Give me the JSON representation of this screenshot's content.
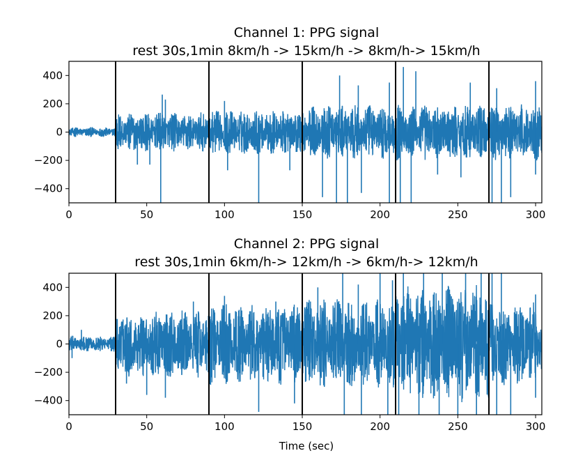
{
  "chart_data": [
    {
      "type": "line",
      "title": "Channel 1: PPG signal",
      "subtitle": "rest 30s,1min 8km/h -> 15km/h -> 8km/h-> 15km/h",
      "xlabel": "",
      "ylabel": "",
      "xlim": [
        0,
        304
      ],
      "ylim": [
        -500,
        500
      ],
      "xticks": [
        0,
        50,
        100,
        150,
        200,
        250,
        300
      ],
      "yticks": [
        -400,
        -200,
        0,
        200,
        400
      ],
      "vlines": [
        30,
        90,
        150,
        210,
        270
      ],
      "series_color": "#1f77b4",
      "vline_color": "#000000",
      "segments": [
        {
          "x0": 0,
          "x1": 30,
          "amp": 35,
          "spikes_up": [],
          "spikes_down": []
        },
        {
          "x0": 30,
          "x1": 90,
          "amp": 140,
          "spikes_up": [
            [
              60,
              265
            ],
            [
              62,
              230
            ]
          ],
          "spikes_down": [
            [
              44,
              -230
            ],
            [
              52,
              -230
            ],
            [
              59,
              -500
            ]
          ]
        },
        {
          "x0": 90,
          "x1": 150,
          "amp": 160,
          "spikes_up": [
            [
              100,
              220
            ]
          ],
          "spikes_down": [
            [
              102,
              -270
            ],
            [
              122,
              -500
            ],
            [
              142,
              -270
            ]
          ]
        },
        {
          "x0": 150,
          "x1": 210,
          "amp": 190,
          "spikes_up": [
            [
              174,
              400
            ],
            [
              186,
              330
            ],
            [
              206,
              350
            ]
          ],
          "spikes_down": [
            [
              163,
              -460
            ],
            [
              172,
              -500
            ],
            [
              179,
              -500
            ],
            [
              188,
              -430
            ],
            [
              206,
              -500
            ]
          ]
        },
        {
          "x0": 210,
          "x1": 270,
          "amp": 200,
          "spikes_up": [
            [
              215,
              460
            ],
            [
              223,
              430
            ],
            [
              258,
              350
            ]
          ],
          "spikes_down": [
            [
              213,
              -500
            ],
            [
              220,
              -500
            ],
            [
              237,
              -300
            ],
            [
              252,
              -320
            ]
          ]
        },
        {
          "x0": 270,
          "x1": 304,
          "amp": 200,
          "spikes_up": [
            [
              275,
              310
            ],
            [
              300,
              360
            ]
          ],
          "spikes_down": [
            [
              272,
              -500
            ],
            [
              278,
              -500
            ],
            [
              284,
              -460
            ],
            [
              300,
              -300
            ]
          ]
        }
      ]
    },
    {
      "type": "line",
      "title": "Channel 2: PPG signal",
      "subtitle": "rest 30s,1min 6km/h-> 12km/h -> 6km/h-> 12km/h",
      "xlabel": "Time (sec)",
      "ylabel": "",
      "xlim": [
        0,
        304
      ],
      "ylim": [
        -500,
        500
      ],
      "xticks": [
        0,
        50,
        100,
        150,
        200,
        250,
        300
      ],
      "yticks": [
        -400,
        -200,
        0,
        200,
        400
      ],
      "vlines": [
        30,
        90,
        150,
        210,
        270
      ],
      "series_color": "#1f77b4",
      "vline_color": "#000000",
      "segments": [
        {
          "x0": 0,
          "x1": 30,
          "amp": 55,
          "spikes_up": [
            [
              8,
              100
            ]
          ],
          "spikes_down": [
            [
              2,
              -100
            ]
          ]
        },
        {
          "x0": 30,
          "x1": 90,
          "amp": 240,
          "spikes_up": [
            [
              80,
              300
            ]
          ],
          "spikes_down": [
            [
              37,
              -280
            ],
            [
              50,
              -360
            ],
            [
              62,
              -380
            ]
          ]
        },
        {
          "x0": 90,
          "x1": 150,
          "amp": 290,
          "spikes_up": [
            [
              100,
              340
            ],
            [
              133,
              300
            ]
          ],
          "spikes_down": [
            [
              122,
              -480
            ],
            [
              145,
              -420
            ]
          ]
        },
        {
          "x0": 150,
          "x1": 210,
          "amp": 320,
          "spikes_up": [
            [
              160,
              400
            ],
            [
              176,
              500
            ],
            [
              186,
              420
            ],
            [
              200,
              500
            ],
            [
              208,
              450
            ]
          ],
          "spikes_down": [
            [
              177,
              -500
            ],
            [
              188,
              -500
            ],
            [
              205,
              -500
            ]
          ]
        },
        {
          "x0": 210,
          "x1": 270,
          "amp": 420,
          "spikes_up": [
            [
              215,
              500
            ],
            [
              228,
              500
            ],
            [
              240,
              500
            ],
            [
              255,
              500
            ],
            [
              265,
              500
            ]
          ],
          "spikes_down": [
            [
              212,
              -500
            ],
            [
              225,
              -500
            ],
            [
              238,
              -500
            ],
            [
              250,
              -500
            ],
            [
              262,
              -500
            ]
          ]
        },
        {
          "x0": 270,
          "x1": 304,
          "amp": 300,
          "spikes_up": [
            [
              272,
              500
            ],
            [
              278,
              500
            ],
            [
              300,
              350
            ]
          ],
          "spikes_down": [
            [
              275,
              -500
            ],
            [
              284,
              -500
            ],
            [
              300,
              -380
            ]
          ]
        }
      ]
    }
  ]
}
